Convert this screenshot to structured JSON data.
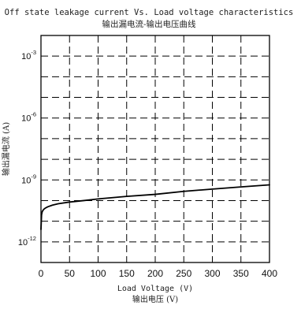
{
  "chart_data": {
    "type": "line",
    "title": "Off state leakage current Vs. Load voltage characteristics",
    "subtitle": "输出漏电流-输出电压曲线",
    "xlabel": "Load Voltage (V)",
    "xlabel_cn": "输出电压 (V)",
    "ylabel": "输出漏电流 (A)",
    "xlim": [
      0,
      400
    ],
    "ylim": [
      1e-13,
      0.01
    ],
    "yscale": "log",
    "grid": true,
    "grid_style": "dashed",
    "xticks": [
      "0",
      "50",
      "100",
      "150",
      "200",
      "250",
      "300",
      "350",
      "400"
    ],
    "yticks": [
      {
        "value": 0.001,
        "base": "10",
        "exp": "-3"
      },
      {
        "value": 1e-06,
        "base": "10",
        "exp": "-6"
      },
      {
        "value": 1e-09,
        "base": "10",
        "exp": "-9"
      },
      {
        "value": 1e-12,
        "base": "10",
        "exp": "-12"
      }
    ],
    "series": [
      {
        "color": "#000000",
        "x": [
          0,
          1,
          2,
          3,
          5,
          8,
          12,
          20,
          30,
          50,
          75,
          100,
          150,
          200,
          250,
          300,
          350,
          400
        ],
        "y": [
          4e-12,
          2e-11,
          2.8e-11,
          3.2e-11,
          3.8e-11,
          4.4e-11,
          5e-11,
          6e-11,
          7e-11,
          8.5e-11,
          1e-10,
          1.2e-10,
          1.6e-10,
          2e-10,
          2.8e-10,
          3.6e-10,
          4.6e-10,
          5.8e-10
        ]
      }
    ]
  }
}
